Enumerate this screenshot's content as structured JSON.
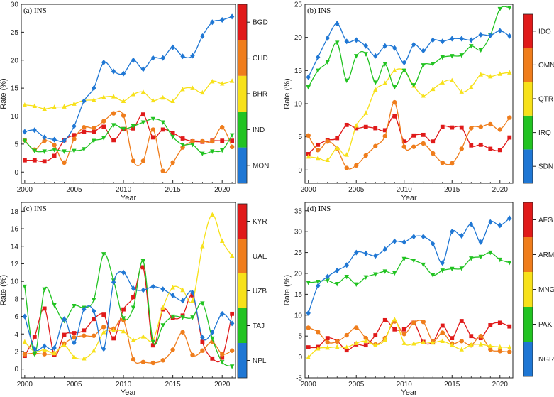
{
  "chart_data": [
    {
      "type": "line",
      "title": "(a) INS",
      "xlabel": "Year",
      "ylabel": "Rate (%)",
      "xlim": [
        2000,
        2021
      ],
      "ylim": [
        -2,
        30
      ],
      "xticks": [
        2000,
        2005,
        2010,
        2015,
        2020
      ],
      "yticks": [
        0,
        5,
        10,
        15,
        20,
        25,
        30
      ],
      "x": [
        2000,
        2001,
        2002,
        2003,
        2004,
        2005,
        2006,
        2007,
        2008,
        2009,
        2010,
        2011,
        2012,
        2013,
        2014,
        2015,
        2016,
        2017,
        2018,
        2019,
        2020,
        2021
      ],
      "series": [
        {
          "name": "MON",
          "color": "#1f77d4",
          "marker": "diamond",
          "values": [
            7.2,
            7.5,
            6.2,
            5.8,
            5.6,
            8.2,
            12.7,
            15,
            19.6,
            18,
            17.6,
            20,
            18.4,
            20.4,
            20.4,
            22.3,
            20.7,
            20.8,
            24.3,
            26.8,
            27.2,
            27.8
          ]
        },
        {
          "name": "IND",
          "color": "#22c322",
          "marker": "triangle-down",
          "values": [
            5.6,
            3.8,
            3.7,
            4.0,
            3.7,
            3.8,
            4.1,
            5.6,
            6.1,
            8.4,
            7.7,
            8.2,
            8.9,
            9.5,
            8.9,
            6.3,
            4.9,
            4.9,
            3.3,
            3.7,
            3.9,
            6.6
          ]
        },
        {
          "name": "BHR",
          "color": "#f7e11a",
          "marker": "triangle-up",
          "values": [
            12,
            11.8,
            11.3,
            11.6,
            11.7,
            12.2,
            12.8,
            12.9,
            13.4,
            13.5,
            12.7,
            13.9,
            14.3,
            12.8,
            13.3,
            12.7,
            14.8,
            15,
            14.2,
            16.2,
            15.8,
            16.3
          ]
        },
        {
          "name": "CHD",
          "color": "#ef7d1c",
          "marker": "circle",
          "values": [
            5.7,
            4.0,
            5.6,
            4.8,
            1.7,
            5.9,
            8.0,
            7.9,
            9.1,
            10.5,
            10.1,
            2.0,
            2.0,
            7.6,
            0.2,
            1.7,
            4.4,
            5.5,
            5.5,
            5.5,
            8.0,
            4.5
          ]
        },
        {
          "name": "BGD",
          "color": "#e01a1a",
          "marker": "square",
          "values": [
            2.1,
            2.1,
            1.9,
            2.9,
            5.7,
            6.6,
            7.2,
            7.2,
            8.1,
            5.7,
            7.7,
            7.8,
            10.3,
            6.2,
            7.6,
            7.0,
            6.0,
            5.5,
            5.4,
            5.6,
            5.6,
            5.6
          ]
        }
      ]
    },
    {
      "type": "line",
      "title": "(b) INS",
      "xlabel": "Year",
      "ylabel": "Rate (%)",
      "xlim": [
        2000,
        2021
      ],
      "ylim": [
        -2,
        25
      ],
      "xticks": [
        2000,
        2005,
        2010,
        2015,
        2020
      ],
      "yticks": [
        0,
        5,
        10,
        15,
        20,
        25
      ],
      "x": [
        2000,
        2001,
        2002,
        2003,
        2004,
        2005,
        2006,
        2007,
        2008,
        2009,
        2010,
        2011,
        2012,
        2013,
        2014,
        2015,
        2016,
        2017,
        2018,
        2019,
        2020,
        2021
      ],
      "series": [
        {
          "name": "SDN",
          "color": "#1f77d4",
          "marker": "diamond",
          "values": [
            14,
            17,
            19.9,
            22.1,
            19.4,
            19.6,
            18.7,
            17.2,
            18.7,
            18.4,
            16.2,
            18.9,
            18,
            19.6,
            19.4,
            19.8,
            19.8,
            19.6,
            20.4,
            20.3,
            21,
            20.2
          ]
        },
        {
          "name": "IRQ",
          "color": "#22c322",
          "marker": "triangle-down",
          "values": [
            12.5,
            15,
            16.3,
            19.2,
            13.5,
            17.2,
            17.5,
            13.2,
            16,
            12.5,
            15,
            12.8,
            15.8,
            16,
            17,
            17.2,
            17.3,
            18.7,
            18.1,
            20.3,
            24.3,
            24.5
          ]
        },
        {
          "name": "QTR",
          "color": "#f7e11a",
          "marker": "triangle-up",
          "values": [
            2,
            1.8,
            1.5,
            3.3,
            2.3,
            6.7,
            8.6,
            12.1,
            13.1,
            15,
            15,
            12.7,
            11.2,
            12.2,
            13.2,
            13.5,
            11.8,
            12.5,
            14.4,
            14.1,
            14.5,
            14.7
          ]
        },
        {
          "name": "OMN",
          "color": "#ef7d1c",
          "marker": "circle",
          "values": [
            5.2,
            3.0,
            4.3,
            3.2,
            0.3,
            0.7,
            2.2,
            3.6,
            5.1,
            10.2,
            3.5,
            3.5,
            4.0,
            2.5,
            1.1,
            1.0,
            3.2,
            6.3,
            6.5,
            6.9,
            6.1,
            7.9
          ]
        },
        {
          "name": "IDO",
          "color": "#e01a1a",
          "marker": "square",
          "values": [
            2.4,
            3.8,
            4.5,
            4.8,
            6.8,
            6.3,
            6.5,
            6.3,
            6.0,
            8.1,
            4.3,
            5.2,
            5.3,
            4.3,
            6.5,
            6.4,
            6.4,
            3.7,
            3.8,
            3.2,
            3.0,
            4.9
          ]
        }
      ]
    },
    {
      "type": "line",
      "title": "(c) INS",
      "xlabel": "Year",
      "ylabel": "Rate (%)",
      "xlim": [
        2000,
        2021
      ],
      "ylim": [
        -1,
        19
      ],
      "xticks": [
        2000,
        2005,
        2010,
        2015,
        2020
      ],
      "yticks": [
        0,
        2,
        4,
        6,
        8,
        10,
        12,
        14,
        16,
        18
      ],
      "x": [
        2000,
        2001,
        2002,
        2003,
        2004,
        2005,
        2006,
        2007,
        2008,
        2009,
        2010,
        2011,
        2012,
        2013,
        2014,
        2015,
        2016,
        2017,
        2018,
        2019,
        2020,
        2021
      ],
      "series": [
        {
          "name": "NPL",
          "color": "#1f77d4",
          "marker": "diamond",
          "values": [
            6,
            2.3,
            2.6,
            2.4,
            5.7,
            3,
            6.8,
            6.6,
            2.3,
            9.9,
            11,
            9.2,
            9,
            9.4,
            9.1,
            8.4,
            7.8,
            8.7,
            3.6,
            4.2,
            6.3,
            5.2
          ]
        },
        {
          "name": "TAJ",
          "color": "#22c322",
          "marker": "triangle-down",
          "values": [
            9.4,
            1.7,
            9.1,
            7.3,
            5.5,
            7.2,
            7,
            7.9,
            13.1,
            10.1,
            5.8,
            7,
            12.3,
            3.1,
            5,
            6,
            5.9,
            5.9,
            7.5,
            3.5,
            0.8,
            0.3
          ]
        },
        {
          "name": "UZB",
          "color": "#f7e11a",
          "marker": "triangle-up",
          "values": [
            3.1,
            2,
            2.2,
            1.8,
            2.7,
            1.4,
            1.2,
            2.1,
            4.2,
            4.4,
            4.3,
            3.3,
            3.7,
            3.3,
            7,
            9.3,
            9,
            7.8,
            14,
            17.6,
            14.6,
            12.9
          ]
        },
        {
          "name": "UAE",
          "color": "#ef7d1c",
          "marker": "circle",
          "values": [
            1.7,
            1.8,
            1.7,
            1.8,
            2.9,
            3.6,
            3.8,
            3.8,
            4.8,
            4.6,
            5.6,
            1.1,
            0.8,
            0.7,
            1,
            2.2,
            4.2,
            1.6,
            2.1,
            3.1,
            1.7,
            2.1
          ]
        },
        {
          "name": "KYR",
          "color": "#e01a1a",
          "marker": "square",
          "values": [
            1.5,
            3.7,
            6.9,
            1.6,
            3.9,
            4.1,
            4.4,
            5.7,
            6.2,
            3.5,
            6.8,
            8.2,
            11.6,
            2.7,
            6.8,
            5.8,
            6.1,
            8.4,
            3.1,
            1.2,
            1.3,
            6.3
          ]
        }
      ]
    },
    {
      "type": "line",
      "title": "(d) INS",
      "xlabel": "Year",
      "ylabel": "Rate (%)",
      "xlim": [
        2000,
        2021
      ],
      "ylim": [
        -5,
        37
      ],
      "xticks": [
        2000,
        2005,
        2010,
        2015,
        2020
      ],
      "yticks": [
        -5,
        0,
        5,
        10,
        15,
        20,
        25,
        30,
        35
      ],
      "x": [
        2000,
        2001,
        2002,
        2003,
        2004,
        2005,
        2006,
        2007,
        2008,
        2009,
        2010,
        2011,
        2012,
        2013,
        2014,
        2015,
        2016,
        2017,
        2018,
        2019,
        2020,
        2021
      ],
      "series": [
        {
          "name": "NGR",
          "color": "#1f77d4",
          "marker": "diamond",
          "values": [
            10.5,
            17,
            19.2,
            20.7,
            22,
            25,
            24.8,
            24.2,
            25.8,
            27.7,
            27.5,
            28.8,
            28.8,
            27.1,
            22.5,
            30,
            29,
            31.8,
            27.5,
            32.3,
            31.5,
            33.2
          ]
        },
        {
          "name": "PAK",
          "color": "#22c322",
          "marker": "triangle-down",
          "values": [
            17.8,
            18,
            18.3,
            17.5,
            19.2,
            17.4,
            19.1,
            19.8,
            20.5,
            20.1,
            23.5,
            23.1,
            22.1,
            19.6,
            20.7,
            21.1,
            21.2,
            23.6,
            24,
            25,
            23.3,
            22.6
          ]
        },
        {
          "name": "MNG",
          "color": "#f7e11a",
          "marker": "triangle-up",
          "values": [
            -0.1,
            2,
            2.2,
            2.4,
            2.3,
            3.3,
            3.8,
            2.8,
            4.1,
            9,
            3.3,
            3.2,
            3.6,
            3.4,
            3.8,
            2.8,
            1.8,
            2.9,
            3,
            2.6,
            2.4,
            2.3
          ]
        },
        {
          "name": "ARM",
          "color": "#ef7d1c",
          "marker": "circle",
          "values": [
            7,
            6,
            3.5,
            3.7,
            5.2,
            7,
            4.5,
            3,
            4.5,
            8.5,
            5.5,
            8.2,
            8.4,
            3.8,
            5.8,
            3.2,
            3.8,
            2.8,
            5,
            1.8,
            1.4,
            1.2
          ]
        },
        {
          "name": "AFG",
          "color": "#e01a1a",
          "marker": "square",
          "values": [
            2.3,
            2.4,
            4.5,
            3.8,
            1.6,
            3,
            2.8,
            5.2,
            8.8,
            6.6,
            6.6,
            8.2,
            3.6,
            3.6,
            7.5,
            4.5,
            8.6,
            5,
            4.5,
            7.6,
            8.2,
            7.3
          ]
        }
      ]
    }
  ]
}
